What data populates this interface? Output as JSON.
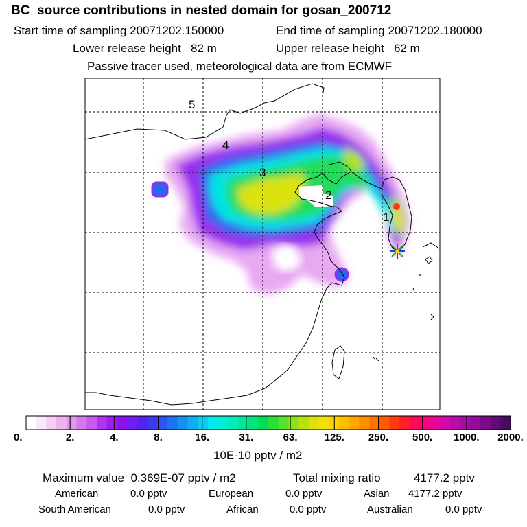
{
  "header": {
    "title": "BC  source contributions in nested domain for gosan_200712",
    "start_label": "Start time of sampling 20071202.150000",
    "end_label": "End time of sampling 20071202.180000",
    "lower_label": "Lower release height   82 m",
    "upper_label": "Upper release height   62 m",
    "tracer_note": "Passive tracer used, meteorological data are from ECMWF"
  },
  "map": {
    "region_labels": [
      "1",
      "2",
      "3",
      "4",
      "5"
    ]
  },
  "colorbar": {
    "tick_labels": [
      "0.",
      "2.",
      "4.",
      "8.",
      "16.",
      "31.",
      "63.",
      "125.",
      "250.",
      "500.",
      "1000.",
      "2000."
    ],
    "unit": "10E-10 pptv / m2",
    "colors": [
      "#ffffff",
      "#fbe6fb",
      "#f5cdf5",
      "#efb2f1",
      "#e395ef",
      "#d478ed",
      "#c55ced",
      "#b035ed",
      "#9d1cef",
      "#8a12ee",
      "#6e1ef0",
      "#5222f0",
      "#3b3aee",
      "#2b55ee",
      "#1e74f0",
      "#1690f0",
      "#10aef0",
      "#08cdef",
      "#00eaf0",
      "#00eed8",
      "#00ecba",
      "#00e99a",
      "#00e47a",
      "#00de58",
      "#29e03a",
      "#5ae22a",
      "#8ae21c",
      "#b6e210",
      "#dce30a",
      "#f6e004",
      "#ffd200",
      "#ffbd00",
      "#ffa500",
      "#ff8e00",
      "#ff7400",
      "#ff5a00",
      "#ff3a10",
      "#ff1e2a",
      "#ff0a55",
      "#f80478",
      "#e80896",
      "#d40aa6",
      "#bc0aa8",
      "#a80aa6",
      "#940a9c",
      "#7c0a8c",
      "#620a7a",
      "#4a0a66"
    ]
  },
  "footer": {
    "max_label": "Maximum value  0.369E-07 pptv / m2",
    "total_label": "Total mixing ratio",
    "total_value": "4177.2 pptv",
    "american_label": "American",
    "american_value": "0.0 pptv",
    "european_label": "European",
    "european_value": "0.0 pptv",
    "asian_label": "Asian",
    "asian_value": "4177.2 pptv",
    "south_american_label": "South American",
    "south_american_value": "0.0 pptv",
    "african_label": "African",
    "african_value": "0.0 pptv",
    "australian_label": "Australian",
    "australian_value": "0.0 pptv"
  }
}
